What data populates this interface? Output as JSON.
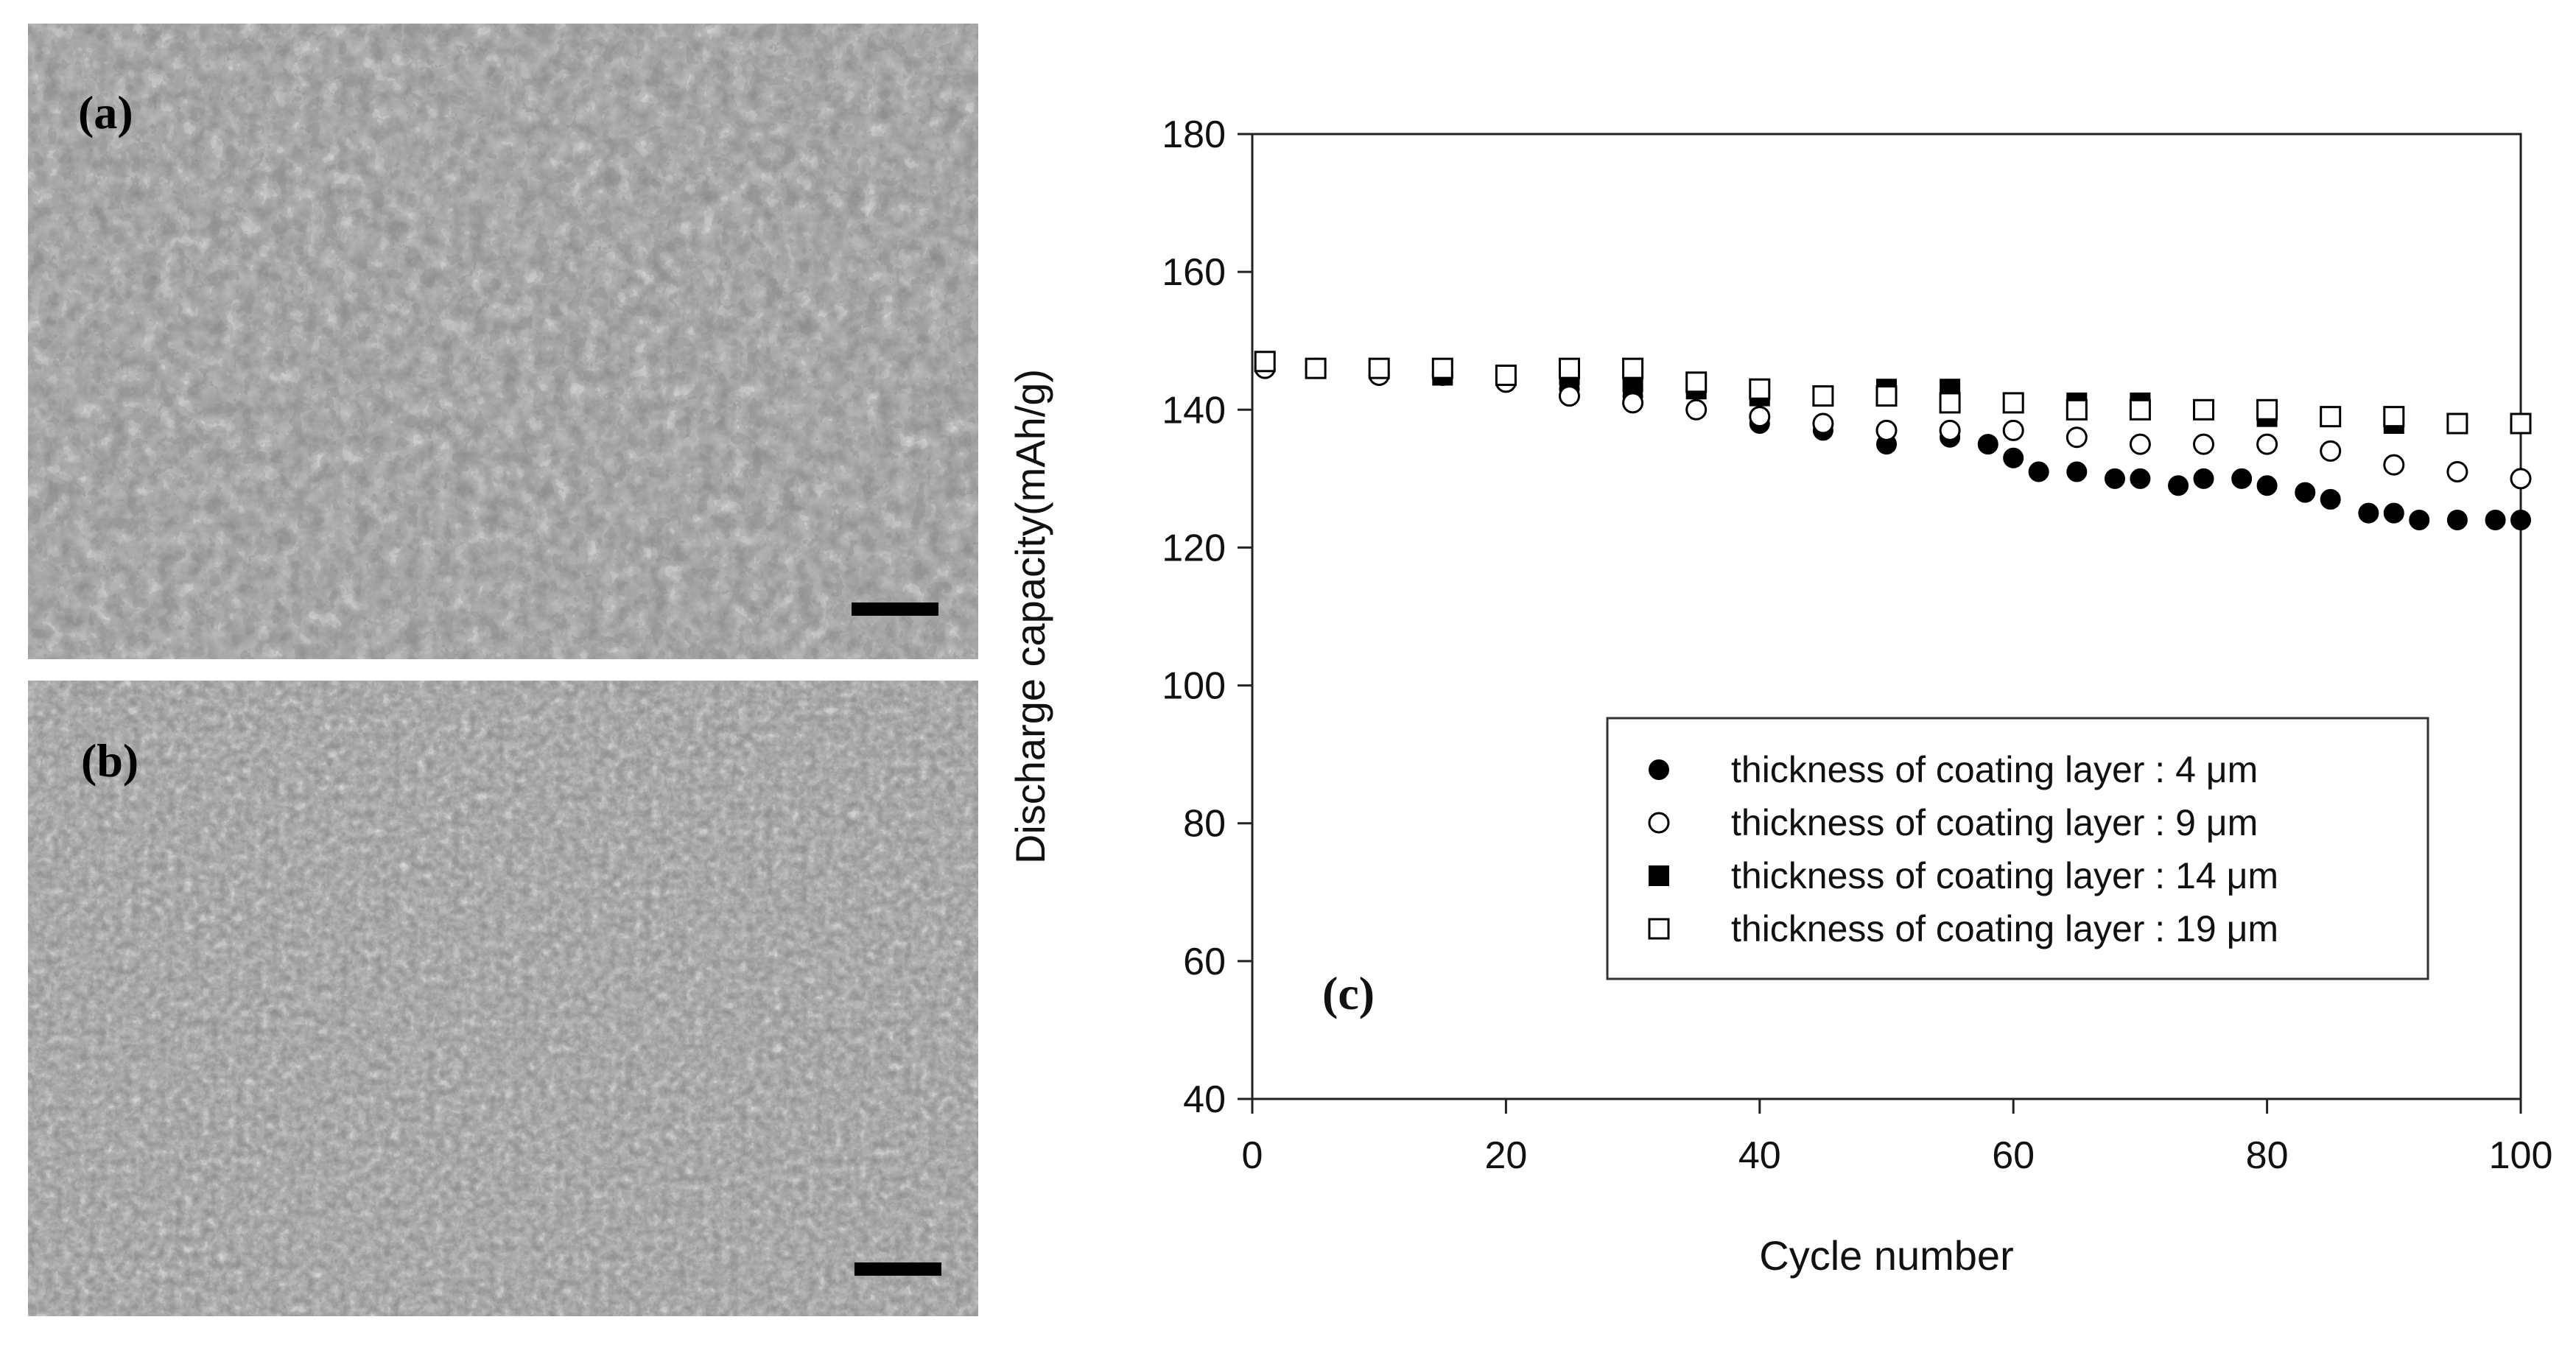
{
  "panels": {
    "a": {
      "label": "(a)"
    },
    "b": {
      "label": "(b)"
    },
    "c": {
      "label": "(c)"
    }
  },
  "chart_data": {
    "type": "scatter",
    "title": "",
    "xlabel": "Cycle number",
    "ylabel": "Discharge capacity(mAh/g)",
    "xlim": [
      0,
      100
    ],
    "ylim": [
      40,
      180
    ],
    "xticks": [
      "0",
      "20",
      "40",
      "60",
      "80",
      "100"
    ],
    "yticks": [
      "40",
      "60",
      "80",
      "100",
      "120",
      "140",
      "160",
      "180"
    ],
    "grid": false,
    "legend_position": "bottom-right",
    "series": [
      {
        "name": "thickness of coating layer : 4 μm",
        "marker": "filled-circle",
        "x": [
          1,
          5,
          10,
          15,
          20,
          25,
          30,
          35,
          40,
          45,
          50,
          55,
          58,
          60,
          62,
          65,
          68,
          70,
          73,
          75,
          78,
          80,
          83,
          85,
          88,
          90,
          92,
          95,
          98,
          100
        ],
        "y": [
          146,
          146,
          145,
          145,
          144,
          143,
          142,
          140,
          138,
          137,
          135,
          136,
          135,
          133,
          131,
          131,
          130,
          130,
          129,
          130,
          130,
          129,
          128,
          127,
          125,
          125,
          124,
          124,
          124,
          124
        ]
      },
      {
        "name": "thickness of coating layer : 9 μm",
        "marker": "open-circle",
        "x": [
          1,
          5,
          10,
          15,
          20,
          25,
          30,
          35,
          40,
          45,
          50,
          55,
          60,
          65,
          70,
          75,
          80,
          85,
          90,
          95,
          100
        ],
        "y": [
          146,
          146,
          145,
          145,
          144,
          142,
          141,
          140,
          139,
          138,
          137,
          137,
          137,
          136,
          135,
          135,
          135,
          134,
          132,
          131,
          130
        ]
      },
      {
        "name": "thickness of coating layer : 14 μm",
        "marker": "filled-square",
        "x": [
          1,
          5,
          10,
          15,
          20,
          25,
          30,
          35,
          40,
          45,
          50,
          55,
          60,
          65,
          70,
          75,
          80,
          85,
          90,
          95,
          100
        ],
        "y": [
          147,
          146,
          146,
          145,
          145,
          145,
          144,
          143,
          142,
          142,
          143,
          143,
          141,
          141,
          141,
          140,
          139,
          139,
          138,
          138,
          138
        ]
      },
      {
        "name": "thickness of coating layer : 19 μm",
        "marker": "open-square",
        "x": [
          1,
          5,
          10,
          15,
          20,
          25,
          30,
          35,
          40,
          45,
          50,
          55,
          60,
          65,
          70,
          75,
          80,
          85,
          90,
          95,
          100
        ],
        "y": [
          147,
          146,
          146,
          146,
          145,
          146,
          146,
          144,
          143,
          142,
          142,
          141,
          141,
          140,
          140,
          140,
          140,
          139,
          139,
          138,
          138
        ]
      }
    ]
  }
}
